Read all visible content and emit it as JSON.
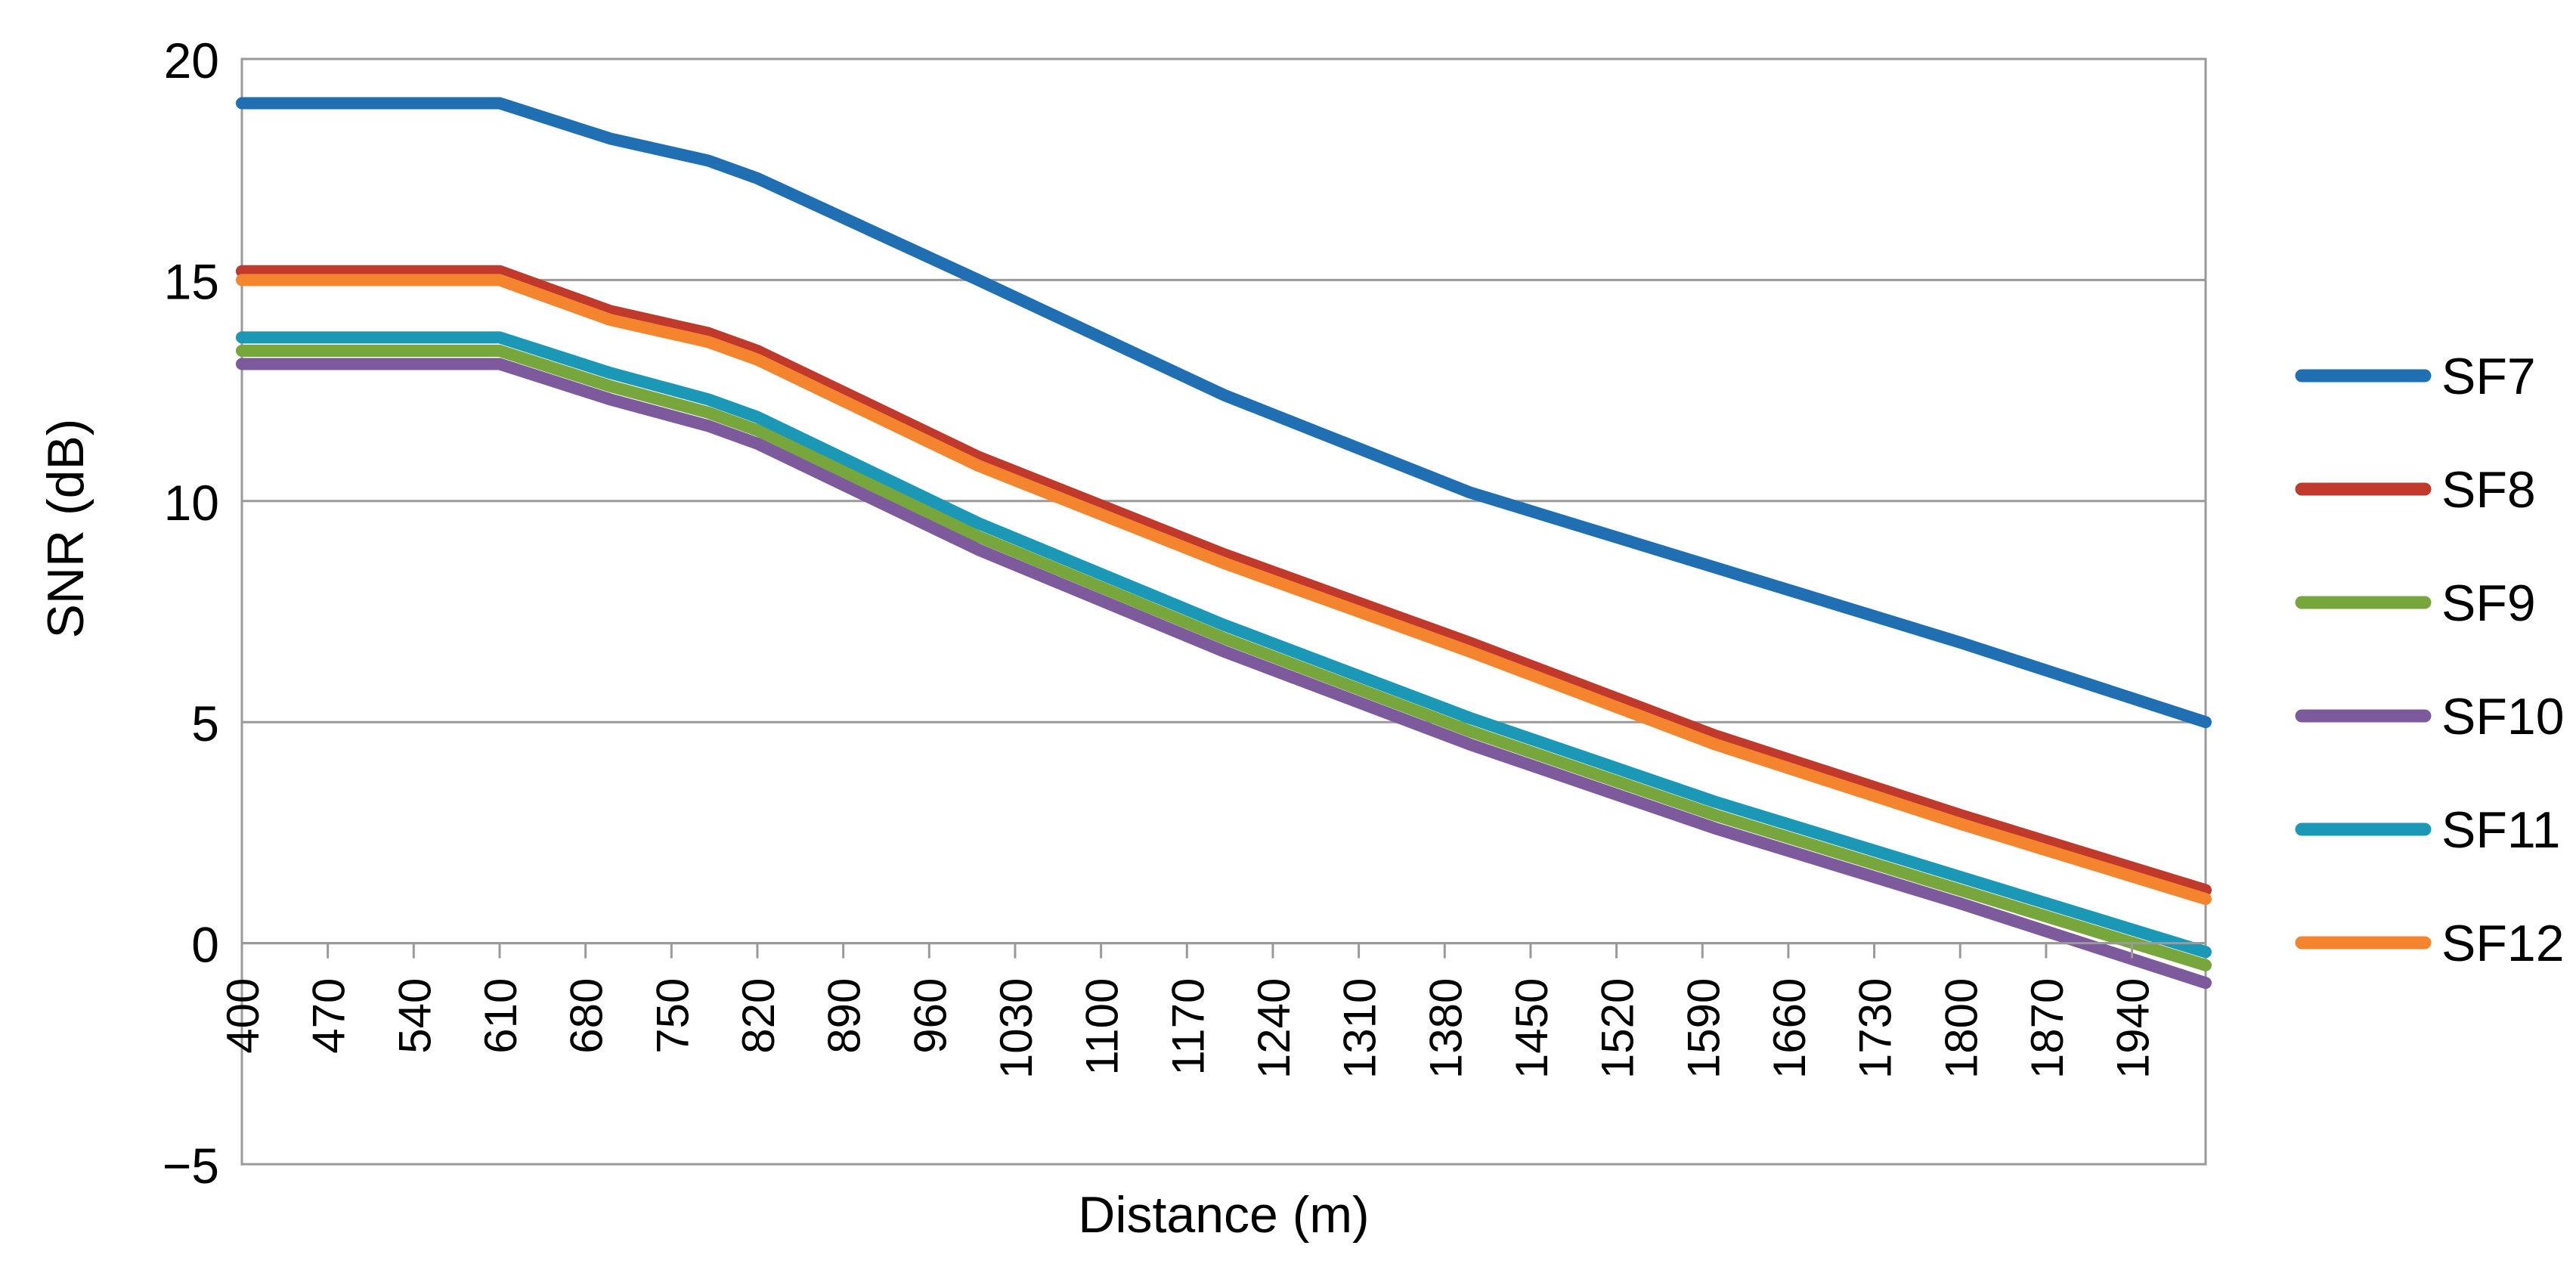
{
  "chart_data": {
    "type": "line",
    "title": "",
    "xlabel": "Distance (m)",
    "ylabel": "SNR (dB)",
    "xlim": [
      400,
      2000
    ],
    "ylim": [
      -5,
      20
    ],
    "yticks": [
      -5,
      0,
      5,
      10,
      15,
      20
    ],
    "ytick_labels": [
      "−5",
      "0",
      "5",
      "10",
      "15",
      "20"
    ],
    "xticks": [
      400,
      470,
      540,
      610,
      680,
      750,
      820,
      890,
      960,
      1030,
      1100,
      1170,
      1240,
      1310,
      1380,
      1450,
      1520,
      1590,
      1660,
      1730,
      1800,
      1870,
      1940
    ],
    "xtick_labels": [
      "400",
      "470",
      "540",
      "610",
      "680",
      "750",
      "820",
      "890",
      "960",
      "1030",
      "1100",
      "1170",
      "1240",
      "1310",
      "1380",
      "1450",
      "1520",
      "1590",
      "1660",
      "1730",
      "1800",
      "1870",
      "1940"
    ],
    "grid": "horizontal",
    "legend_position": "right",
    "series": [
      {
        "name": "SF7",
        "color": "#1f6fb2",
        "x": [
          400,
          610,
          700,
          780,
          820,
          1000,
          1200,
          1400,
          1600,
          1800,
          2000
        ],
        "y": [
          19.0,
          19.0,
          18.2,
          17.7,
          17.3,
          15.0,
          12.4,
          10.2,
          8.5,
          6.8,
          5.0
        ]
      },
      {
        "name": "SF8",
        "color": "#c0392b",
        "x": [
          400,
          610,
          700,
          780,
          820,
          1000,
          1200,
          1400,
          1600,
          1800,
          2000
        ],
        "y": [
          15.2,
          15.2,
          14.3,
          13.8,
          13.4,
          11.0,
          8.8,
          6.8,
          4.7,
          2.9,
          1.2
        ]
      },
      {
        "name": "SF9",
        "color": "#77a73c",
        "x": [
          400,
          610,
          700,
          780,
          820,
          1000,
          1200,
          1400,
          1600,
          1800,
          2000
        ],
        "y": [
          13.4,
          13.4,
          12.6,
          12.0,
          11.6,
          9.2,
          6.9,
          4.8,
          2.9,
          1.2,
          -0.5
        ]
      },
      {
        "name": "SF10",
        "color": "#7d5a9b",
        "x": [
          400,
          610,
          700,
          780,
          820,
          1000,
          1200,
          1400,
          1600,
          1800,
          2000
        ],
        "y": [
          13.1,
          13.1,
          12.3,
          11.7,
          11.3,
          8.9,
          6.6,
          4.5,
          2.6,
          0.9,
          -0.9
        ]
      },
      {
        "name": "SF11",
        "color": "#1b98b5",
        "x": [
          400,
          610,
          700,
          780,
          820,
          1000,
          1200,
          1400,
          1600,
          1800,
          2000
        ],
        "y": [
          13.7,
          13.7,
          12.9,
          12.3,
          11.9,
          9.5,
          7.2,
          5.1,
          3.2,
          1.5,
          -0.2
        ]
      },
      {
        "name": "SF12",
        "color": "#f5842f",
        "x": [
          400,
          610,
          700,
          780,
          820,
          1000,
          1200,
          1400,
          1600,
          1800,
          2000
        ],
        "y": [
          15.0,
          15.0,
          14.1,
          13.6,
          13.2,
          10.8,
          8.6,
          6.6,
          4.5,
          2.7,
          1.0
        ]
      }
    ]
  }
}
